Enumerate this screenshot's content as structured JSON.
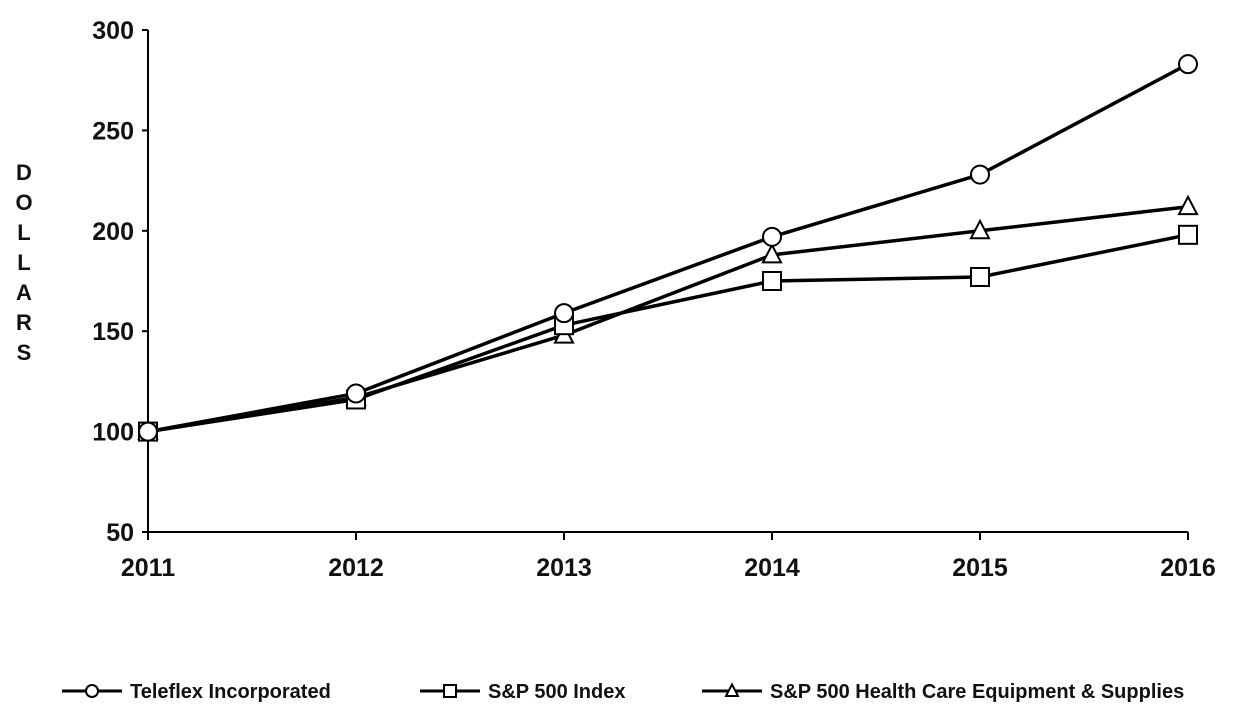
{
  "chart_data": {
    "type": "line",
    "title": "",
    "xlabel": "",
    "ylabel": "DOLLARS",
    "x": [
      "2011",
      "2012",
      "2013",
      "2014",
      "2015",
      "2016"
    ],
    "ylim": [
      50,
      300
    ],
    "yticks": [
      "300",
      "250",
      "200",
      "150",
      "100",
      "50"
    ],
    "ytick_values": [
      300,
      250,
      200,
      150,
      100,
      50
    ],
    "grid": false,
    "legend_position": "bottom",
    "series": [
      {
        "name": "Teleflex Incorporated",
        "marker": "circle",
        "values": [
          100,
          119,
          159,
          197,
          228,
          283
        ]
      },
      {
        "name": "S&P 500 Index",
        "marker": "square",
        "values": [
          100,
          116,
          153,
          175,
          177,
          198
        ]
      },
      {
        "name": "S&P 500 Health Care Equipment & Supplies",
        "marker": "triangle",
        "values": [
          100,
          117,
          148,
          188,
          200,
          212
        ]
      }
    ],
    "line_color": "#000000",
    "marker_fill": "#ffffff"
  }
}
